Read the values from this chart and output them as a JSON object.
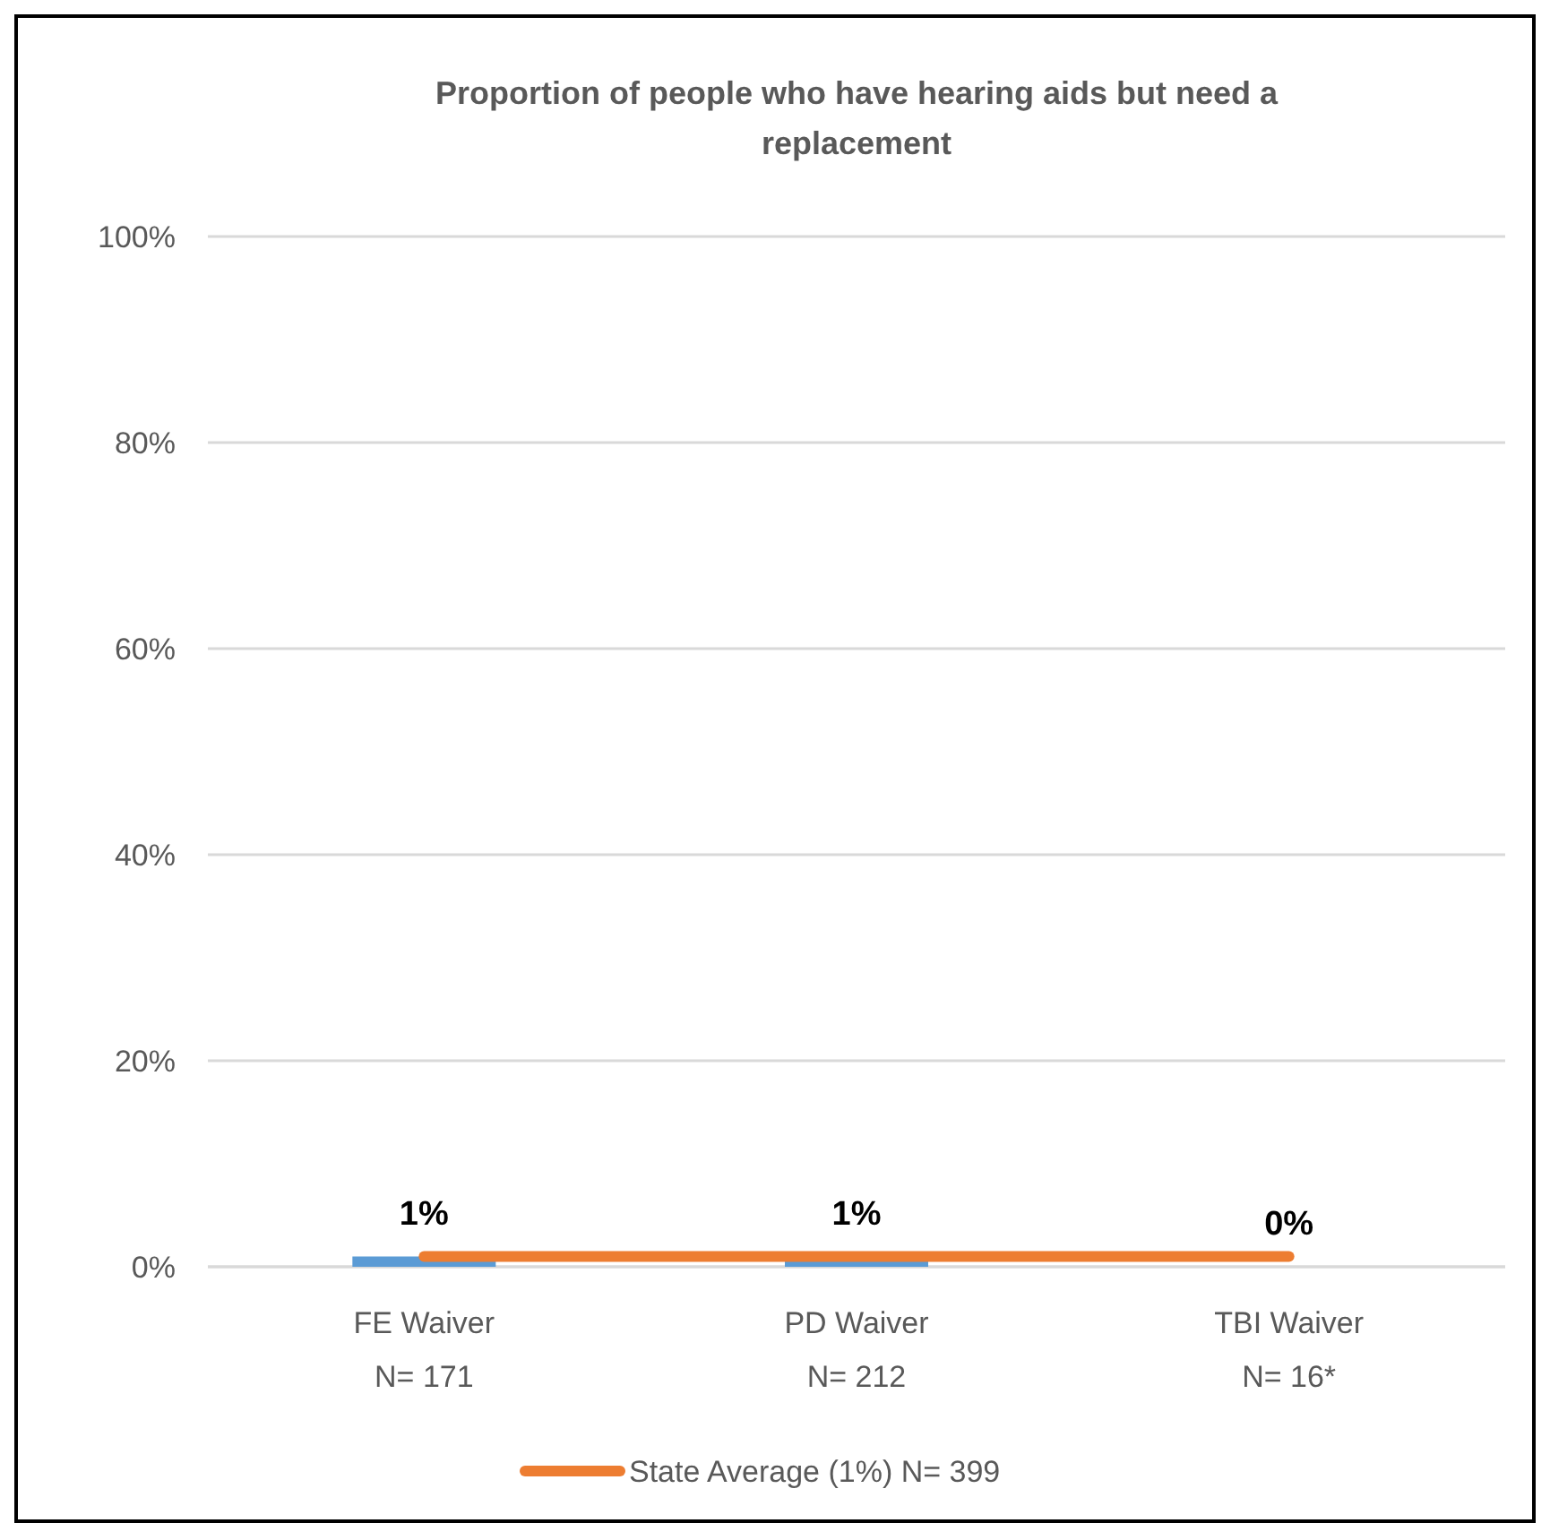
{
  "chart_data": {
    "type": "bar",
    "title": "Proportion of people who have hearing aids but need a replacement",
    "categories": [
      "FE Waiver\nN= 171",
      "PD Waiver\nN= 212",
      "TBI Waiver\nN= 16*"
    ],
    "series": [
      {
        "color": "#5b9bd5",
        "values": [
          1,
          1,
          0
        ],
        "value_labels": [
          "1%",
          "1%",
          "0%"
        ]
      },
      {
        "type": "line",
        "name": "State Average (1%) N= 399",
        "color": "#ed7d31",
        "values": [
          1,
          1,
          1
        ]
      }
    ],
    "ylim": [
      0,
      100
    ],
    "yticks": [
      {
        "value": 0,
        "label": "0%"
      },
      {
        "value": 20,
        "label": "20%"
      },
      {
        "value": 40,
        "label": "40%"
      },
      {
        "value": 60,
        "label": "60%"
      },
      {
        "value": 80,
        "label": "80%"
      },
      {
        "value": 100,
        "label": "100%"
      }
    ],
    "grid": "y",
    "legend": "bottom"
  }
}
